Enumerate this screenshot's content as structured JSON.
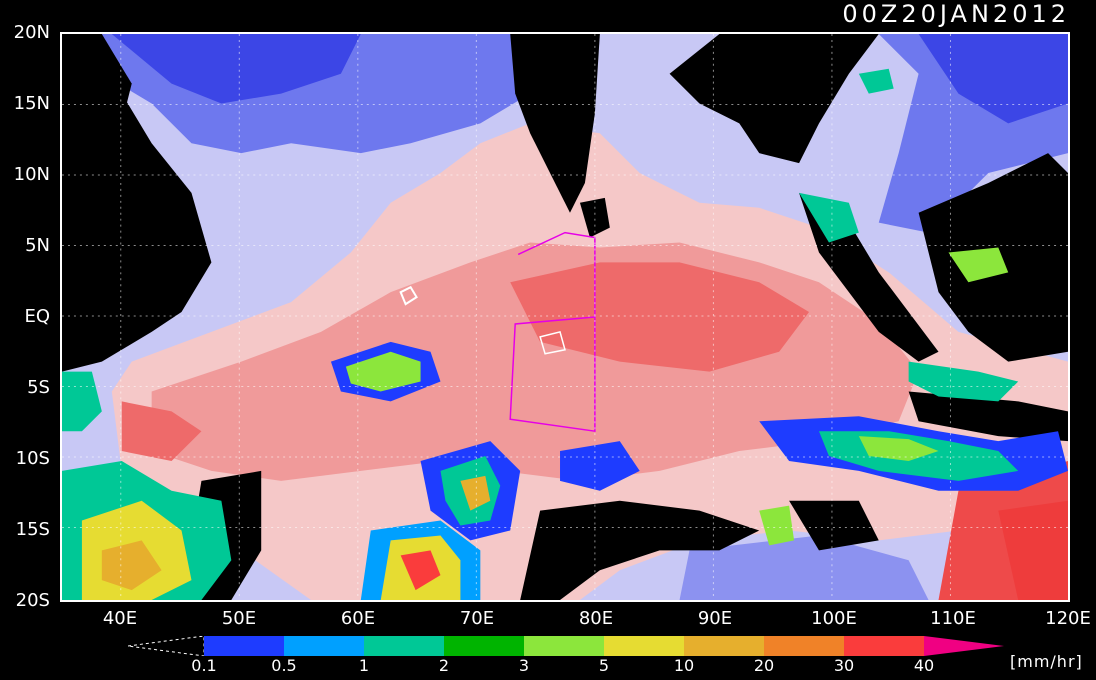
{
  "timestamp": "00Z20JAN2012",
  "map": {
    "lat_labels": [
      "20N",
      "15N",
      "10N",
      "5N",
      "EQ",
      "5S",
      "10S",
      "15S",
      "20S"
    ],
    "lon_labels": [
      "40E",
      "50E",
      "60E",
      "70E",
      "80E",
      "90E",
      "100E",
      "110E",
      "120E"
    ],
    "extent": {
      "lon": [
        35,
        120
      ],
      "lat": [
        -20,
        20
      ]
    },
    "grid": "dotted"
  },
  "colorbar": {
    "ticks": [
      "0.1",
      "0.5",
      "1",
      "2",
      "3",
      "5",
      "10",
      "20",
      "30",
      "40"
    ],
    "units": "[mm/hr]",
    "colors": [
      "#1e3cff",
      "#00a0ff",
      "#00c896",
      "#00b400",
      "#8ce63c",
      "#e6dc32",
      "#e6af2d",
      "#f08228",
      "#fa3c3c",
      "#f00082"
    ]
  },
  "colors": {
    "background": "#000000",
    "low_rain_blue": "#3c46e6",
    "light_blue": "#9aa0f0",
    "pale_pink": "#f5c8c8",
    "mid_pink": "#f09a9a",
    "strong_pink": "#ee5a5a",
    "land": "#000000"
  }
}
